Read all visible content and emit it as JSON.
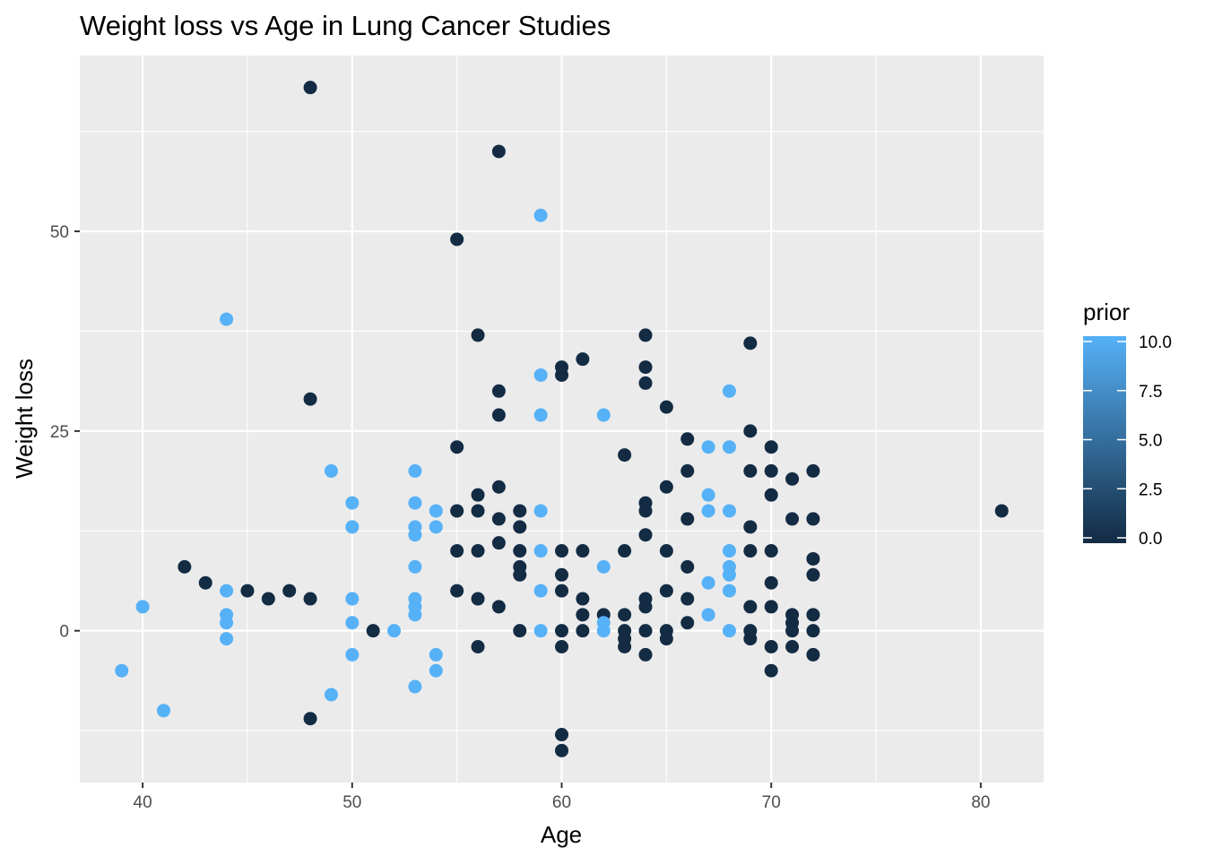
{
  "chart_data": {
    "type": "scatter",
    "title": "Weight loss vs Age in Lung Cancer Studies",
    "xlabel": "Age",
    "ylabel": "Weight loss",
    "xlim": [
      37,
      83
    ],
    "ylim": [
      -19,
      72
    ],
    "x_ticks": [
      40,
      50,
      60,
      70,
      80
    ],
    "y_ticks": [
      0,
      25,
      50
    ],
    "grid": true,
    "legend": {
      "title": "prior",
      "position": "right",
      "type": "colorbar",
      "range": [
        0,
        10
      ],
      "ticks": [
        0,
        2.5,
        5,
        7.5,
        10
      ],
      "tick_labels": [
        "0.0",
        "2.5",
        "5.0",
        "7.5",
        "10.0"
      ],
      "low_color": "#132B43",
      "high_color": "#56B1F7"
    },
    "colors": {
      "low": "#132B43",
      "high": "#56B1F7",
      "panel": "#EBEBEB",
      "grid": "#FFFFFF"
    },
    "points": [
      {
        "x": 39,
        "y": -5,
        "prior": 10
      },
      {
        "x": 40,
        "y": 3,
        "prior": 10
      },
      {
        "x": 41,
        "y": -10,
        "prior": 10
      },
      {
        "x": 42,
        "y": 8,
        "prior": 0
      },
      {
        "x": 43,
        "y": 6,
        "prior": 0
      },
      {
        "x": 44,
        "y": 39,
        "prior": 10
      },
      {
        "x": 44,
        "y": 5,
        "prior": 10
      },
      {
        "x": 44,
        "y": 2,
        "prior": 10
      },
      {
        "x": 44,
        "y": 1,
        "prior": 10
      },
      {
        "x": 44,
        "y": -1,
        "prior": 10
      },
      {
        "x": 45,
        "y": 5,
        "prior": 0
      },
      {
        "x": 46,
        "y": 4,
        "prior": 0
      },
      {
        "x": 47,
        "y": 5,
        "prior": 0
      },
      {
        "x": 48,
        "y": 68,
        "prior": 0
      },
      {
        "x": 48,
        "y": 29,
        "prior": 0
      },
      {
        "x": 48,
        "y": 4,
        "prior": 0
      },
      {
        "x": 48,
        "y": -11,
        "prior": 0
      },
      {
        "x": 49,
        "y": 20,
        "prior": 10
      },
      {
        "x": 49,
        "y": -8,
        "prior": 10
      },
      {
        "x": 50,
        "y": 16,
        "prior": 10
      },
      {
        "x": 50,
        "y": 13,
        "prior": 10
      },
      {
        "x": 50,
        "y": 4,
        "prior": 10
      },
      {
        "x": 50,
        "y": 1,
        "prior": 10
      },
      {
        "x": 50,
        "y": -3,
        "prior": 10
      },
      {
        "x": 51,
        "y": 0,
        "prior": 0
      },
      {
        "x": 52,
        "y": 0,
        "prior": 10
      },
      {
        "x": 53,
        "y": 20,
        "prior": 10
      },
      {
        "x": 53,
        "y": 16,
        "prior": 10
      },
      {
        "x": 53,
        "y": 13,
        "prior": 10
      },
      {
        "x": 53,
        "y": 12,
        "prior": 10
      },
      {
        "x": 53,
        "y": 8,
        "prior": 10
      },
      {
        "x": 53,
        "y": 4,
        "prior": 10
      },
      {
        "x": 53,
        "y": 3,
        "prior": 10
      },
      {
        "x": 53,
        "y": 2,
        "prior": 10
      },
      {
        "x": 53,
        "y": -7,
        "prior": 10
      },
      {
        "x": 54,
        "y": 15,
        "prior": 10
      },
      {
        "x": 54,
        "y": 13,
        "prior": 10
      },
      {
        "x": 54,
        "y": -3,
        "prior": 10
      },
      {
        "x": 54,
        "y": -5,
        "prior": 10
      },
      {
        "x": 55,
        "y": 49,
        "prior": 0
      },
      {
        "x": 55,
        "y": 23,
        "prior": 0
      },
      {
        "x": 55,
        "y": 15,
        "prior": 0
      },
      {
        "x": 55,
        "y": 10,
        "prior": 0
      },
      {
        "x": 55,
        "y": 5,
        "prior": 0
      },
      {
        "x": 56,
        "y": 37,
        "prior": 0
      },
      {
        "x": 56,
        "y": 17,
        "prior": 0
      },
      {
        "x": 56,
        "y": 15,
        "prior": 0
      },
      {
        "x": 56,
        "y": 10,
        "prior": 0
      },
      {
        "x": 56,
        "y": 4,
        "prior": 0
      },
      {
        "x": 56,
        "y": -2,
        "prior": 0
      },
      {
        "x": 57,
        "y": 60,
        "prior": 0
      },
      {
        "x": 57,
        "y": 30,
        "prior": 0
      },
      {
        "x": 57,
        "y": 27,
        "prior": 0
      },
      {
        "x": 57,
        "y": 18,
        "prior": 0
      },
      {
        "x": 57,
        "y": 14,
        "prior": 0
      },
      {
        "x": 57,
        "y": 11,
        "prior": 0
      },
      {
        "x": 57,
        "y": 3,
        "prior": 0
      },
      {
        "x": 58,
        "y": 15,
        "prior": 0
      },
      {
        "x": 58,
        "y": 13,
        "prior": 0
      },
      {
        "x": 58,
        "y": 10,
        "prior": 0
      },
      {
        "x": 58,
        "y": 8,
        "prior": 0
      },
      {
        "x": 58,
        "y": 7,
        "prior": 0
      },
      {
        "x": 58,
        "y": 0,
        "prior": 0
      },
      {
        "x": 59,
        "y": 52,
        "prior": 10
      },
      {
        "x": 59,
        "y": 32,
        "prior": 10
      },
      {
        "x": 59,
        "y": 27,
        "prior": 10
      },
      {
        "x": 59,
        "y": 15,
        "prior": 10
      },
      {
        "x": 59,
        "y": 10,
        "prior": 10
      },
      {
        "x": 59,
        "y": 5,
        "prior": 10
      },
      {
        "x": 59,
        "y": 0,
        "prior": 10
      },
      {
        "x": 60,
        "y": 33,
        "prior": 0
      },
      {
        "x": 60,
        "y": 32,
        "prior": 0
      },
      {
        "x": 60,
        "y": 10,
        "prior": 0
      },
      {
        "x": 60,
        "y": 7,
        "prior": 0
      },
      {
        "x": 60,
        "y": 5,
        "prior": 0
      },
      {
        "x": 60,
        "y": 0,
        "prior": 0
      },
      {
        "x": 60,
        "y": -2,
        "prior": 0
      },
      {
        "x": 60,
        "y": -13,
        "prior": 0
      },
      {
        "x": 60,
        "y": -15,
        "prior": 0
      },
      {
        "x": 61,
        "y": 34,
        "prior": 0
      },
      {
        "x": 61,
        "y": 10,
        "prior": 0
      },
      {
        "x": 61,
        "y": 4,
        "prior": 0
      },
      {
        "x": 61,
        "y": 2,
        "prior": 0
      },
      {
        "x": 61,
        "y": 0,
        "prior": 0
      },
      {
        "x": 62,
        "y": 27,
        "prior": 10
      },
      {
        "x": 62,
        "y": 8,
        "prior": 10
      },
      {
        "x": 62,
        "y": 2,
        "prior": 0
      },
      {
        "x": 62,
        "y": 1,
        "prior": 10
      },
      {
        "x": 62,
        "y": 0,
        "prior": 10
      },
      {
        "x": 63,
        "y": 22,
        "prior": 0
      },
      {
        "x": 63,
        "y": 10,
        "prior": 0
      },
      {
        "x": 63,
        "y": 2,
        "prior": 0
      },
      {
        "x": 63,
        "y": 0,
        "prior": 0
      },
      {
        "x": 63,
        "y": -1,
        "prior": 0
      },
      {
        "x": 63,
        "y": -2,
        "prior": 0
      },
      {
        "x": 64,
        "y": 37,
        "prior": 0
      },
      {
        "x": 64,
        "y": 33,
        "prior": 0
      },
      {
        "x": 64,
        "y": 31,
        "prior": 0
      },
      {
        "x": 64,
        "y": 16,
        "prior": 0
      },
      {
        "x": 64,
        "y": 15,
        "prior": 0
      },
      {
        "x": 64,
        "y": 12,
        "prior": 0
      },
      {
        "x": 64,
        "y": 4,
        "prior": 0
      },
      {
        "x": 64,
        "y": 3,
        "prior": 0
      },
      {
        "x": 64,
        "y": 0,
        "prior": 0
      },
      {
        "x": 64,
        "y": -3,
        "prior": 0
      },
      {
        "x": 65,
        "y": 28,
        "prior": 0
      },
      {
        "x": 65,
        "y": 18,
        "prior": 0
      },
      {
        "x": 65,
        "y": 10,
        "prior": 0
      },
      {
        "x": 65,
        "y": 5,
        "prior": 0
      },
      {
        "x": 65,
        "y": 0,
        "prior": 0
      },
      {
        "x": 65,
        "y": -1,
        "prior": 0
      },
      {
        "x": 66,
        "y": 24,
        "prior": 0
      },
      {
        "x": 66,
        "y": 20,
        "prior": 0
      },
      {
        "x": 66,
        "y": 14,
        "prior": 0
      },
      {
        "x": 66,
        "y": 8,
        "prior": 0
      },
      {
        "x": 66,
        "y": 4,
        "prior": 0
      },
      {
        "x": 66,
        "y": 1,
        "prior": 0
      },
      {
        "x": 67,
        "y": 23,
        "prior": 10
      },
      {
        "x": 67,
        "y": 17,
        "prior": 10
      },
      {
        "x": 67,
        "y": 15,
        "prior": 10
      },
      {
        "x": 67,
        "y": 6,
        "prior": 10
      },
      {
        "x": 67,
        "y": 2,
        "prior": 10
      },
      {
        "x": 68,
        "y": 30,
        "prior": 10
      },
      {
        "x": 68,
        "y": 23,
        "prior": 10
      },
      {
        "x": 68,
        "y": 15,
        "prior": 10
      },
      {
        "x": 68,
        "y": 10,
        "prior": 10
      },
      {
        "x": 68,
        "y": 8,
        "prior": 10
      },
      {
        "x": 68,
        "y": 7,
        "prior": 10
      },
      {
        "x": 68,
        "y": 5,
        "prior": 10
      },
      {
        "x": 68,
        "y": 0,
        "prior": 10
      },
      {
        "x": 69,
        "y": 36,
        "prior": 0
      },
      {
        "x": 69,
        "y": 25,
        "prior": 0
      },
      {
        "x": 69,
        "y": 20,
        "prior": 0
      },
      {
        "x": 69,
        "y": 13,
        "prior": 0
      },
      {
        "x": 69,
        "y": 10,
        "prior": 0
      },
      {
        "x": 69,
        "y": 3,
        "prior": 0
      },
      {
        "x": 69,
        "y": 0,
        "prior": 0
      },
      {
        "x": 69,
        "y": -1,
        "prior": 0
      },
      {
        "x": 70,
        "y": 23,
        "prior": 0
      },
      {
        "x": 70,
        "y": 20,
        "prior": 0
      },
      {
        "x": 70,
        "y": 17,
        "prior": 0
      },
      {
        "x": 70,
        "y": 10,
        "prior": 0
      },
      {
        "x": 70,
        "y": 6,
        "prior": 0
      },
      {
        "x": 70,
        "y": 3,
        "prior": 0
      },
      {
        "x": 70,
        "y": -2,
        "prior": 0
      },
      {
        "x": 70,
        "y": -5,
        "prior": 0
      },
      {
        "x": 71,
        "y": 19,
        "prior": 0
      },
      {
        "x": 71,
        "y": 14,
        "prior": 0
      },
      {
        "x": 71,
        "y": 2,
        "prior": 0
      },
      {
        "x": 71,
        "y": 1,
        "prior": 0
      },
      {
        "x": 71,
        "y": 0,
        "prior": 0
      },
      {
        "x": 71,
        "y": -2,
        "prior": 0
      },
      {
        "x": 72,
        "y": 20,
        "prior": 0
      },
      {
        "x": 72,
        "y": 14,
        "prior": 0
      },
      {
        "x": 72,
        "y": 9,
        "prior": 0
      },
      {
        "x": 72,
        "y": 7,
        "prior": 0
      },
      {
        "x": 72,
        "y": 2,
        "prior": 0
      },
      {
        "x": 72,
        "y": 0,
        "prior": 0
      },
      {
        "x": 72,
        "y": -3,
        "prior": 0
      },
      {
        "x": 81,
        "y": 15,
        "prior": 0
      }
    ]
  }
}
